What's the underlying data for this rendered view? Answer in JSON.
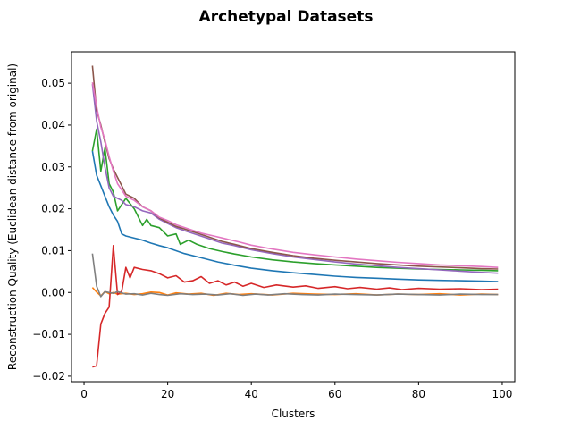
{
  "chart_data": {
    "type": "line",
    "title": "Archetypal Datasets",
    "xlabel": "Clusters",
    "ylabel": "Reconstruction Quality (Euclidean distance from original)",
    "xlim": [
      -3,
      103
    ],
    "ylim": [
      -0.0213,
      0.0575
    ],
    "xticks": [
      0,
      20,
      40,
      60,
      80,
      100
    ],
    "xtick_labels": [
      "0",
      "20",
      "40",
      "60",
      "80",
      "100"
    ],
    "yticks": [
      -0.02,
      -0.01,
      0.0,
      0.01,
      0.02,
      0.03,
      0.04,
      0.05
    ],
    "ytick_labels": [
      "−0.02",
      "−0.01",
      "0.00",
      "0.01",
      "0.02",
      "0.03",
      "0.04",
      "0.05"
    ],
    "grid": false,
    "legend": "none",
    "series": [
      {
        "color": "#1f77b4",
        "x": [
          2,
          3,
          4,
          5,
          6,
          7,
          8,
          9,
          10,
          12,
          14,
          16,
          18,
          20,
          24,
          28,
          32,
          36,
          40,
          45,
          50,
          55,
          60,
          65,
          70,
          75,
          80,
          85,
          90,
          95,
          99
        ],
        "y": [
          0.0338,
          0.028,
          0.0255,
          0.023,
          0.0205,
          0.0185,
          0.017,
          0.014,
          0.0135,
          0.013,
          0.0125,
          0.0118,
          0.0112,
          0.0107,
          0.0093,
          0.0083,
          0.0073,
          0.0065,
          0.0058,
          0.0052,
          0.0047,
          0.0043,
          0.0039,
          0.0036,
          0.0034,
          0.0032,
          0.003,
          0.0029,
          0.0028,
          0.0027,
          0.0026
        ]
      },
      {
        "color": "#ff7f0e",
        "x": [
          2,
          3,
          4,
          5,
          6,
          7,
          8,
          10,
          12,
          14,
          16,
          18,
          20,
          22,
          25,
          28,
          31,
          34,
          37,
          40,
          45,
          50,
          55,
          60,
          65,
          70,
          75,
          80,
          85,
          90,
          95,
          99
        ],
        "y": [
          0.0012,
          0.0001,
          -0.0008,
          0.0002,
          -0.0003,
          0.0,
          -0.0004,
          -0.0002,
          -0.0005,
          -0.0003,
          0.0001,
          0.0,
          -0.0006,
          -0.0001,
          -0.0004,
          -0.0002,
          -0.0007,
          -0.0002,
          -0.0005,
          -0.0003,
          -0.0006,
          -0.0002,
          -0.0004,
          -0.0005,
          -0.0003,
          -0.0006,
          -0.0004,
          -0.0005,
          -0.0003,
          -0.0006,
          -0.0004,
          -0.0005
        ]
      },
      {
        "color": "#2ca02c",
        "x": [
          2,
          3,
          4,
          5,
          6,
          7,
          8,
          9,
          10,
          12,
          14,
          15,
          16,
          18,
          20,
          22,
          23,
          25,
          27,
          30,
          33,
          36,
          40,
          45,
          50,
          55,
          60,
          65,
          70,
          75,
          80,
          85,
          90,
          95,
          99
        ],
        "y": [
          0.0338,
          0.039,
          0.029,
          0.0345,
          0.026,
          0.024,
          0.0195,
          0.021,
          0.0225,
          0.02,
          0.016,
          0.0175,
          0.016,
          0.0155,
          0.0135,
          0.014,
          0.0115,
          0.0125,
          0.0115,
          0.0105,
          0.0098,
          0.0092,
          0.0085,
          0.0078,
          0.0073,
          0.0069,
          0.0066,
          0.0063,
          0.006,
          0.0058,
          0.0056,
          0.0055,
          0.0054,
          0.0053,
          0.0052
        ]
      },
      {
        "color": "#d62728",
        "x": [
          2,
          3,
          4,
          5,
          6,
          7,
          8,
          9,
          10,
          11,
          12,
          14,
          16,
          18,
          20,
          22,
          24,
          26,
          28,
          30,
          32,
          34,
          36,
          38,
          40,
          43,
          46,
          50,
          53,
          56,
          60,
          63,
          66,
          70,
          73,
          76,
          80,
          85,
          90,
          95,
          99
        ],
        "y": [
          -0.0178,
          -0.0175,
          -0.0075,
          -0.005,
          -0.0035,
          0.0112,
          -0.0005,
          0.0003,
          0.006,
          0.0035,
          0.006,
          0.0055,
          0.0052,
          0.0045,
          0.0035,
          0.004,
          0.0025,
          0.0028,
          0.0038,
          0.0022,
          0.0028,
          0.0018,
          0.0025,
          0.0015,
          0.0022,
          0.0012,
          0.0018,
          0.0013,
          0.0016,
          0.001,
          0.0014,
          0.0009,
          0.0012,
          0.0008,
          0.0011,
          0.0007,
          0.001,
          0.0008,
          0.0009,
          0.0007,
          0.0008
        ]
      },
      {
        "color": "#9467bd",
        "x": [
          2,
          3,
          4,
          5,
          6,
          7,
          8,
          9,
          10,
          12,
          14,
          16,
          18,
          20,
          22,
          24,
          27,
          30,
          33,
          36,
          40,
          45,
          50,
          55,
          60,
          65,
          70,
          75,
          80,
          85,
          90,
          95,
          99
        ],
        "y": [
          0.0498,
          0.041,
          0.036,
          0.03,
          0.025,
          0.023,
          0.0225,
          0.022,
          0.021,
          0.0205,
          0.0195,
          0.019,
          0.0175,
          0.0165,
          0.0155,
          0.0148,
          0.0138,
          0.0128,
          0.0118,
          0.0112,
          0.0102,
          0.0093,
          0.0085,
          0.0079,
          0.0073,
          0.0068,
          0.0064,
          0.006,
          0.0057,
          0.0054,
          0.0051,
          0.0048,
          0.0046
        ]
      },
      {
        "color": "#8c564b",
        "x": [
          2,
          3,
          4,
          5,
          6,
          7,
          8,
          9,
          10,
          12,
          14,
          16,
          18,
          20,
          22,
          24,
          27,
          30,
          33,
          36,
          40,
          45,
          50,
          55,
          60,
          65,
          70,
          75,
          80,
          85,
          90,
          95,
          99
        ],
        "y": [
          0.0542,
          0.0435,
          0.04,
          0.036,
          0.032,
          0.0295,
          0.0275,
          0.0255,
          0.0235,
          0.0225,
          0.0205,
          0.0195,
          0.0178,
          0.0168,
          0.0158,
          0.0152,
          0.0142,
          0.0132,
          0.0122,
          0.0115,
          0.0105,
          0.0096,
          0.0088,
          0.0082,
          0.0077,
          0.0073,
          0.0069,
          0.0066,
          0.0063,
          0.0061,
          0.0059,
          0.0057,
          0.0056
        ]
      },
      {
        "color": "#e377c2",
        "x": [
          2,
          3,
          4,
          5,
          6,
          7,
          8,
          9,
          10,
          12,
          14,
          16,
          18,
          20,
          22,
          25,
          28,
          31,
          34,
          37,
          40,
          45,
          50,
          55,
          60,
          65,
          70,
          75,
          80,
          85,
          90,
          95,
          99
        ],
        "y": [
          0.0502,
          0.0445,
          0.0395,
          0.0365,
          0.0325,
          0.029,
          0.026,
          0.0245,
          0.023,
          0.022,
          0.0205,
          0.0195,
          0.018,
          0.0172,
          0.0162,
          0.0152,
          0.0142,
          0.0135,
          0.0128,
          0.0121,
          0.0113,
          0.0104,
          0.0096,
          0.009,
          0.0085,
          0.008,
          0.0076,
          0.0072,
          0.0069,
          0.0066,
          0.0064,
          0.0062,
          0.006
        ]
      },
      {
        "color": "#7f7f7f",
        "x": [
          2,
          3,
          4,
          5,
          6,
          7,
          8,
          10,
          12,
          14,
          16,
          18,
          20,
          23,
          26,
          29,
          32,
          35,
          38,
          41,
          44,
          48,
          52,
          56,
          60,
          65,
          70,
          75,
          80,
          85,
          90,
          95,
          99
        ],
        "y": [
          0.0093,
          0.0015,
          -0.001,
          0.0002,
          0.0,
          -0.0002,
          0.0002,
          -0.0004,
          -0.0003,
          -0.0006,
          -0.0002,
          -0.0005,
          -0.0007,
          -0.0003,
          -0.0005,
          -0.0004,
          -0.0006,
          -0.0003,
          -0.0007,
          -0.0004,
          -0.0006,
          -0.0003,
          -0.0005,
          -0.0006,
          -0.0004,
          -0.0005,
          -0.0006,
          -0.0004,
          -0.0005,
          -0.0006,
          -0.0004,
          -0.0005,
          -0.0005
        ]
      }
    ]
  }
}
